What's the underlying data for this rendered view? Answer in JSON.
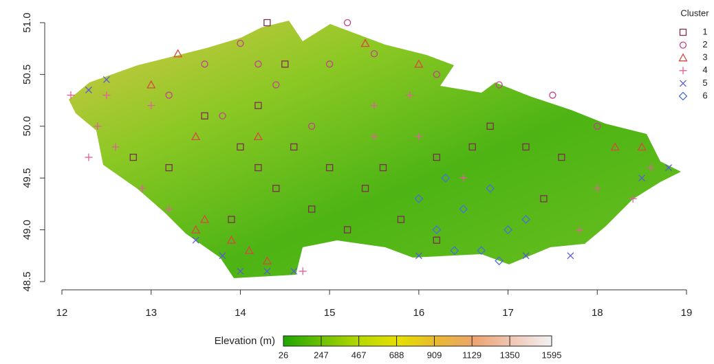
{
  "chart_data": {
    "type": "scatter",
    "xlim": [
      12,
      19
    ],
    "ylim": [
      48.5,
      51
    ],
    "xticks": [
      12,
      13,
      14,
      15,
      16,
      17,
      18,
      19
    ],
    "yticks": [
      {
        "value": 48.5,
        "label": "48.5"
      },
      {
        "value": 49,
        "label": "49.0"
      },
      49.5,
      {
        "value": 50,
        "label": "50.0"
      },
      50.5,
      {
        "value": 51,
        "label": "51.0"
      }
    ],
    "legend_title": "Cluster",
    "legend_position": "top-right",
    "series": [
      {
        "name": "1",
        "color": "#7b2d4f",
        "marker": "square",
        "x": [
          14.0,
          14.2,
          14.4,
          14.6,
          15.0,
          14.8,
          14.2,
          14.5,
          13.6,
          13.2,
          15.4,
          15.6,
          15.8,
          16.2,
          16.6,
          16.8,
          17.2,
          17.6,
          14.3,
          16.2,
          13.9,
          15.2,
          17.4,
          12.8
        ],
        "y": [
          49.8,
          49.6,
          49.4,
          49.8,
          49.6,
          49.2,
          50.2,
          50.6,
          50.1,
          49.6,
          49.4,
          49.6,
          49.1,
          49.7,
          49.8,
          50.0,
          49.8,
          49.7,
          51.0,
          48.9,
          49.1,
          49.0,
          49.3,
          49.7
        ]
      },
      {
        "name": "2",
        "color": "#c2408a",
        "marker": "circle",
        "x": [
          14.0,
          13.6,
          14.4,
          13.2,
          15.0,
          15.2,
          14.8,
          13.8,
          16.9,
          17.5,
          18.0,
          16.2,
          14.2,
          15.5
        ],
        "y": [
          50.8,
          50.6,
          50.4,
          50.3,
          50.6,
          51.0,
          50.0,
          50.1,
          50.4,
          50.3,
          50.0,
          50.5,
          50.6,
          50.7
        ]
      },
      {
        "name": "3",
        "color": "#d9473f",
        "marker": "triangle",
        "x": [
          13.3,
          13.0,
          15.4,
          16.0,
          13.6,
          13.9,
          14.1,
          13.5,
          14.3,
          18.2,
          18.5,
          14.2,
          13.5
        ],
        "y": [
          50.7,
          50.4,
          50.8,
          50.6,
          49.1,
          48.9,
          48.8,
          49.0,
          48.7,
          49.8,
          49.8,
          49.9,
          49.9
        ]
      },
      {
        "name": "4",
        "color": "#e0609a",
        "marker": "plus",
        "x": [
          12.1,
          12.4,
          12.6,
          12.9,
          13.2,
          12.5,
          15.5,
          16.0,
          15.5,
          16.5,
          18.0,
          18.6,
          17.8,
          14.7,
          15.9,
          12.3,
          13.0,
          18.4
        ],
        "y": [
          50.3,
          50.0,
          49.8,
          49.4,
          49.2,
          50.3,
          50.2,
          49.9,
          49.9,
          49.5,
          49.4,
          49.6,
          49.0,
          48.6,
          50.3,
          49.7,
          50.2,
          49.3
        ]
      },
      {
        "name": "5",
        "color": "#5a5ad6",
        "marker": "cross",
        "x": [
          12.3,
          12.5,
          13.5,
          13.8,
          14.0,
          14.3,
          14.6,
          18.5,
          18.8,
          17.2,
          17.7,
          16.0
        ],
        "y": [
          50.35,
          50.45,
          48.9,
          48.75,
          48.6,
          48.6,
          48.6,
          49.5,
          49.6,
          48.75,
          48.75,
          48.75
        ]
      },
      {
        "name": "6",
        "color": "#4a6fd8",
        "marker": "diamond",
        "x": [
          16.2,
          16.5,
          16.8,
          17.0,
          16.4,
          16.0,
          16.7,
          17.2,
          16.3,
          16.9
        ],
        "y": [
          49.0,
          49.2,
          49.4,
          49.0,
          48.8,
          49.3,
          48.8,
          49.1,
          49.5,
          48.7
        ]
      }
    ],
    "colorbar": {
      "title": "Elevation (m)",
      "lim": [
        26,
        1595
      ],
      "ticks": [
        26,
        247,
        467,
        688,
        909,
        1129,
        1350,
        1595
      ],
      "colors": [
        "#1fa500",
        "#6cc100",
        "#b8d800",
        "#e6e000",
        "#e8b830",
        "#eca470",
        "#f0c8b8",
        "#f2f2f2"
      ]
    }
  }
}
